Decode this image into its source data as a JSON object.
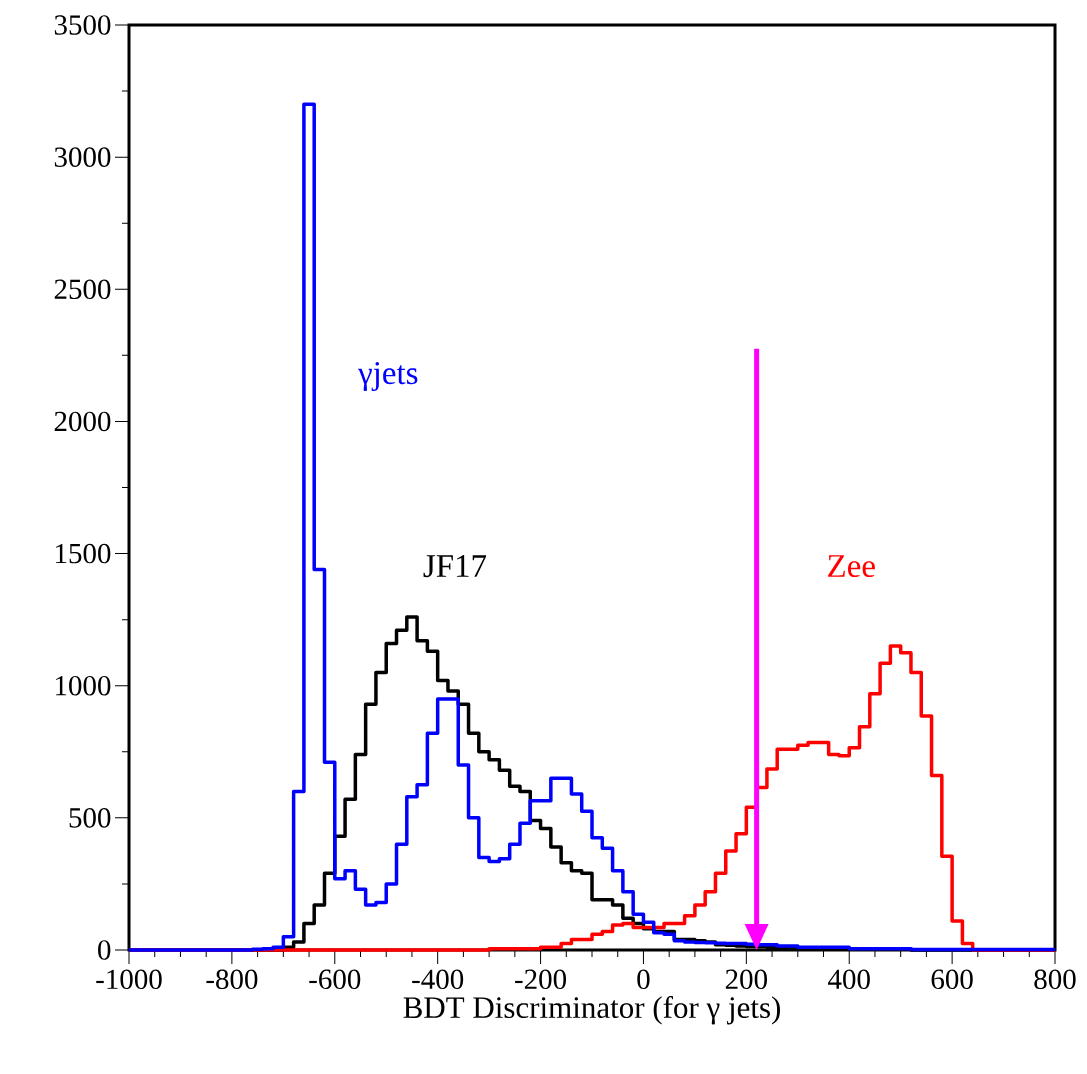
{
  "chart_data": {
    "type": "histogram",
    "xlabel": "BDT Discriminator (for γ jets)",
    "bins": [
      -1000,
      -980,
      -960,
      -940,
      -920,
      -900,
      -880,
      -860,
      -840,
      -820,
      -800,
      -780,
      -760,
      -740,
      -720,
      -700,
      -680,
      -660,
      -640,
      -620,
      -600,
      -580,
      -560,
      -540,
      -520,
      -500,
      -480,
      -460,
      -440,
      -420,
      -400,
      -380,
      -360,
      -340,
      -320,
      -300,
      -280,
      -260,
      -240,
      -220,
      -200,
      -180,
      -160,
      -140,
      -120,
      -100,
      -80,
      -60,
      -40,
      -20,
      0,
      20,
      40,
      60,
      80,
      100,
      120,
      140,
      160,
      180,
      200,
      220,
      240,
      260,
      280,
      300,
      320,
      340,
      360,
      380,
      400,
      420,
      440,
      460,
      480,
      500,
      520,
      540,
      560,
      580,
      600,
      620,
      640,
      660,
      680,
      700,
      720,
      740,
      760,
      780,
      800
    ],
    "series": [
      {
        "name": "JF17",
        "color": "#000000",
        "values": [
          0,
          0,
          0,
          0,
          0,
          0,
          0,
          0,
          0,
          0,
          0,
          0,
          0,
          0,
          0,
          10,
          30,
          100,
          170,
          290,
          430,
          570,
          740,
          930,
          1050,
          1160,
          1210,
          1260,
          1170,
          1130,
          1020,
          980,
          930,
          820,
          750,
          720,
          680,
          620,
          600,
          490,
          460,
          390,
          330,
          300,
          290,
          190,
          190,
          170,
          120,
          100,
          80,
          70,
          70,
          40,
          40,
          35,
          30,
          20,
          18,
          15,
          13,
          12,
          10,
          5,
          5,
          5,
          5,
          5,
          5,
          5,
          5,
          5,
          5,
          5,
          5,
          5,
          0,
          0,
          0,
          0,
          0,
          0,
          0,
          0,
          0,
          0,
          0,
          0,
          0,
          0
        ]
      },
      {
        "name": "Zee",
        "color": "#ff0000",
        "values": [
          0,
          0,
          0,
          0,
          0,
          0,
          0,
          0,
          0,
          0,
          0,
          0,
          0,
          0,
          0,
          0,
          0,
          0,
          0,
          0,
          0,
          0,
          0,
          0,
          0,
          0,
          0,
          0,
          0,
          0,
          0,
          0,
          0,
          0,
          0,
          5,
          5,
          5,
          5,
          5,
          10,
          10,
          25,
          40,
          40,
          60,
          70,
          95,
          100,
          85,
          85,
          85,
          100,
          100,
          130,
          170,
          220,
          290,
          375,
          440,
          540,
          615,
          685,
          760,
          760,
          775,
          785,
          785,
          740,
          735,
          765,
          845,
          970,
          1085,
          1150,
          1125,
          1050,
          885,
          660,
          355,
          110,
          25,
          0,
          0,
          0,
          0,
          0,
          0,
          0,
          0
        ]
      },
      {
        "name": "γjets",
        "color": "#0000ff",
        "values": [
          0,
          0,
          0,
          0,
          0,
          0,
          0,
          0,
          0,
          0,
          0,
          0,
          3,
          5,
          10,
          50,
          600,
          3200,
          1440,
          710,
          270,
          300,
          230,
          170,
          180,
          250,
          400,
          580,
          625,
          820,
          950,
          950,
          700,
          500,
          350,
          335,
          345,
          400,
          480,
          565,
          565,
          650,
          650,
          590,
          525,
          425,
          385,
          300,
          220,
          135,
          105,
          65,
          60,
          35,
          30,
          28,
          27,
          26,
          25,
          25,
          22,
          20,
          20,
          15,
          15,
          10,
          10,
          10,
          10,
          10,
          5,
          5,
          5,
          5,
          5,
          5,
          2,
          2,
          2,
          2,
          2,
          2,
          2,
          2,
          2,
          2,
          2,
          2,
          2,
          2
        ]
      }
    ],
    "xlim": [
      -1000,
      800
    ],
    "ylim": [
      0,
      3500
    ],
    "xticks": [
      -1000,
      -800,
      -600,
      -400,
      -200,
      0,
      200,
      400,
      600,
      800
    ],
    "yticks": [
      0,
      500,
      1000,
      1500,
      2000,
      2500,
      3000,
      3500
    ],
    "ref_lines": [
      {
        "axis": "x",
        "value": 220,
        "color": "#ff00ff"
      }
    ]
  }
}
